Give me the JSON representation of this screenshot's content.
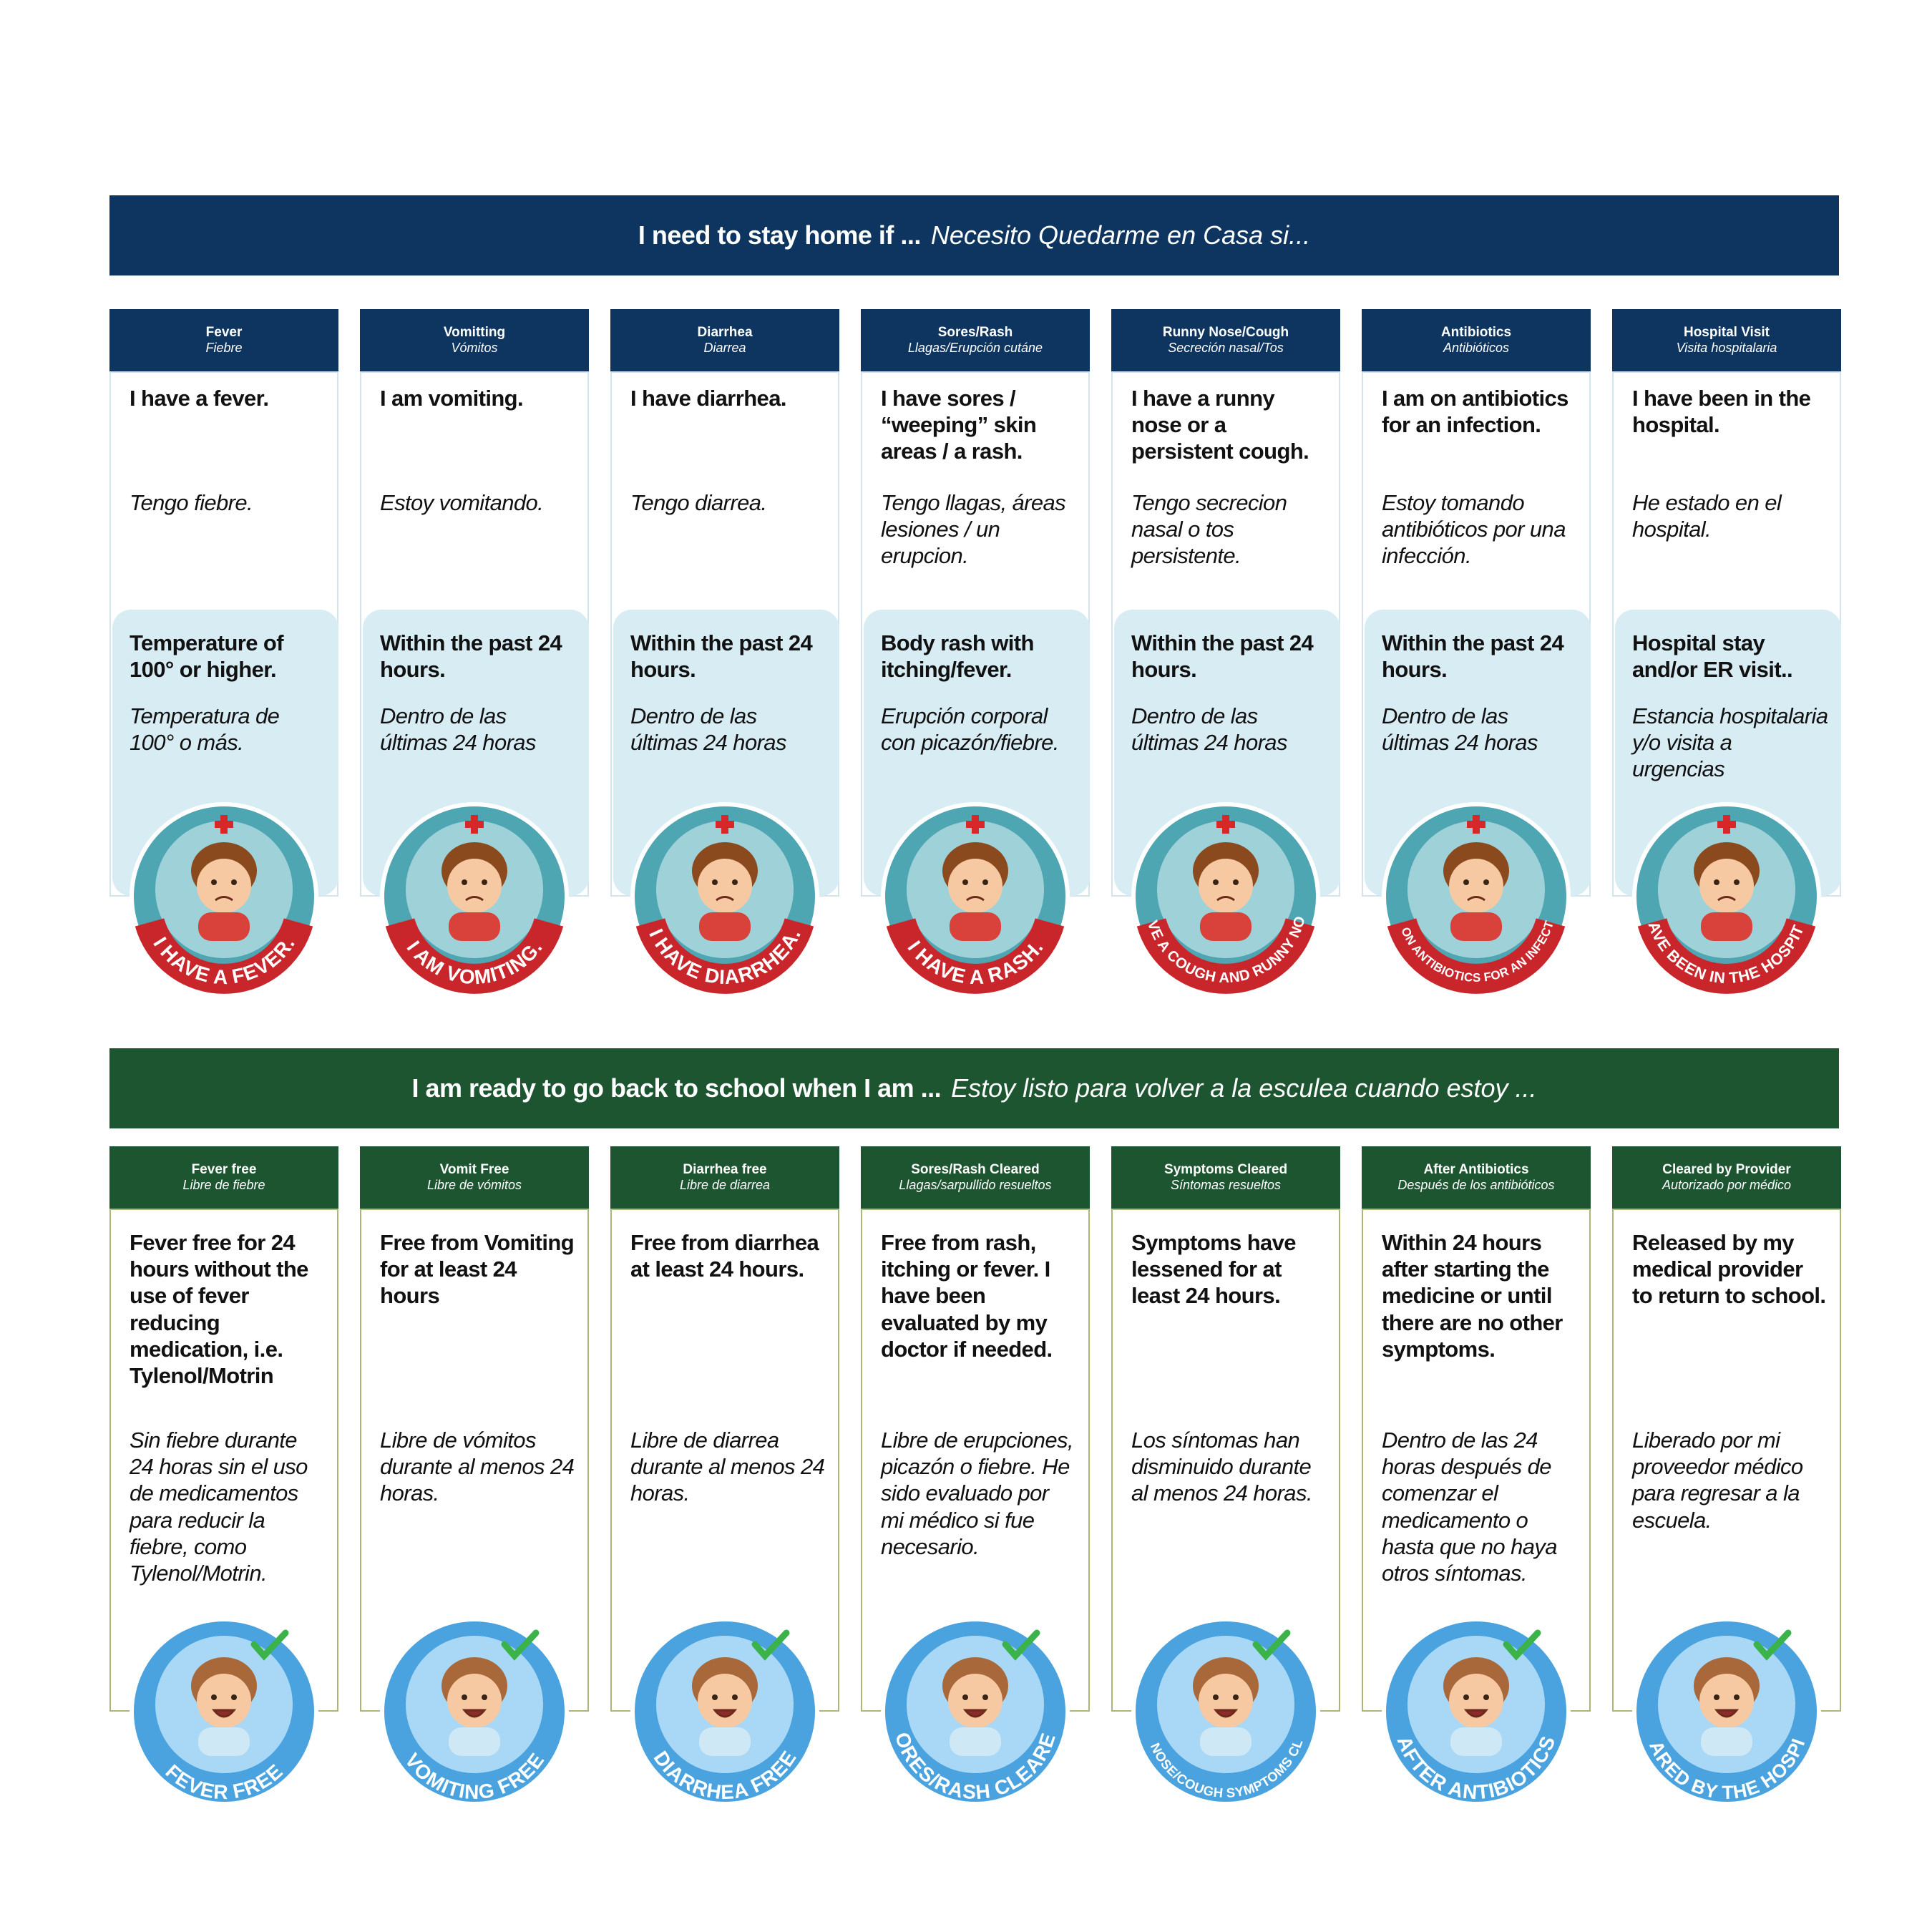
{
  "top": {
    "banner": {
      "en": "I need to stay home if ...",
      "es": "Necesito Quedarme en Casa si..."
    },
    "cards": [
      {
        "title_en": "Fever",
        "title_es": "Fiebre",
        "statement_en": "I have a fever.",
        "statement_es": "Tengo fiebre.",
        "criteria_en": "Temperature of 100° or higher.",
        "criteria_es": "Temperatura de 100° o más.",
        "badge": "I HAVE A FEVER."
      },
      {
        "title_en": "Vomitting",
        "title_es": "Vómitos",
        "statement_en": "I am vomiting.",
        "statement_es": "Estoy vomitando.",
        "criteria_en": "Within the past 24 hours.",
        "criteria_es": "Dentro de las últimas 24 horas",
        "badge": "I AM VOMITING."
      },
      {
        "title_en": "Diarrhea",
        "title_es": "Diarrea",
        "statement_en": "I have diarrhea.",
        "statement_es": "Tengo diarrea.",
        "criteria_en": "Within the past 24 hours.",
        "criteria_es": "Dentro de las últimas 24 horas",
        "badge": "I HAVE DIARRHEA."
      },
      {
        "title_en": "Sores/Rash",
        "title_es": "Llagas/Erupción cutáne",
        "statement_en": "I have sores / “weeping” skin areas / a rash.",
        "statement_es": "Tengo llagas, áreas lesiones / un erupcion.",
        "criteria_en": "Body rash with itching/fever.",
        "criteria_es": "Erupción corporal con picazón/fiebre.",
        "badge": "I HAVE A RASH."
      },
      {
        "title_en": "Runny Nose/Cough",
        "title_es": "Secreción nasal/Tos",
        "statement_en": "I have a runny nose or a persistent cough.",
        "statement_es": "Tengo secrecion nasal o tos persistente.",
        "criteria_en": "Within the past 24 hours.",
        "criteria_es": "Dentro de las últimas 24 horas",
        "badge": "I HAVE A COUGH AND RUNNY NOSE."
      },
      {
        "title_en": "Antibiotics",
        "title_es": "Antibióticos",
        "statement_en": "I am on antibiotics for an infection.",
        "statement_es": "Estoy tomando antibióticos por una infección.",
        "criteria_en": "Within the past 24 hours.",
        "criteria_es": "Dentro de las últimas 24 horas",
        "badge": "I AM ON ANTIBIOTICS FOR AN INFECTION"
      },
      {
        "title_en": "Hospital Visit",
        "title_es": "Visita hospitalaria",
        "statement_en": "I have been in the hospital.",
        "statement_es": "He estado en el hospital.",
        "criteria_en": "Hospital stay and/or ER visit..",
        "criteria_es": "Estancia hospitalaria y/o visita a urgencias",
        "badge": "I HAVE BEEN IN THE HOSPITAL."
      }
    ]
  },
  "bottom": {
    "banner": {
      "en": "I am ready to go back to school when I am ...",
      "es": "Estoy listo para volver a la esculea cuando estoy ..."
    },
    "cards": [
      {
        "title_en": "Fever free",
        "title_es": "Libre de fiebre",
        "statement_en": "Fever free for 24 hours without the use of fever reducing medication, i.e. Tylenol/Motrin",
        "statement_es": "Sin fiebre durante 24 horas sin el uso de medicamentos para reducir la fiebre, como Tylenol/Motrin.",
        "badge": "FEVER FREE"
      },
      {
        "title_en": "Vomit Free",
        "title_es": "Libre de vómitos",
        "statement_en": "Free from Vomiting for at least 24 hours",
        "statement_es": "Libre de vómitos durante al menos 24 horas.",
        "badge": "VOMITING FREE"
      },
      {
        "title_en": "Diarrhea free",
        "title_es": "Libre de diarrea",
        "statement_en": "Free from diarrhea at least 24 hours.",
        "statement_es": "Libre de diarrea durante al menos 24 horas.",
        "badge": "DIARRHEA FREE"
      },
      {
        "title_en": "Sores/Rash Cleared",
        "title_es": "Llagas/sarpullido resueltos",
        "statement_en": "Free from rash, itching or fever. I have been evaluated by my doctor if needed.",
        "statement_es": "Libre de erupciones, picazón o fiebre. He sido evaluado por mi médico si fue necesario.",
        "badge": "SORES/RASH CLEARED"
      },
      {
        "title_en": "Symptoms Cleared",
        "title_es": "Síntomas resueltos",
        "statement_en": "Symptoms have lessened for at least 24 hours.",
        "statement_es": "Los síntomas han disminuido durante al menos 24 horas.",
        "badge": "RUNNY NOSE/COUGH SYMPTOMS CLEARED"
      },
      {
        "title_en": "After Antibiotics",
        "title_es": "Después de los antibióticos",
        "statement_en": "Within 24 hours after starting the medicine or until there are no other symptoms.",
        "statement_es": "Dentro de las 24 horas después de comenzar el medicamento o hasta que no haya otros síntomas.",
        "badge": "AFTER ANTIBIOTICS"
      },
      {
        "title_en": "Cleared by Provider",
        "title_es": "Autorizado por médico",
        "statement_en": "Released by my medical provider to return to school.",
        "statement_es": "Liberado por mi proveedor médico para regresar a la escuela.",
        "badge": "CLEARED BY THE HOSPITAL"
      }
    ]
  }
}
